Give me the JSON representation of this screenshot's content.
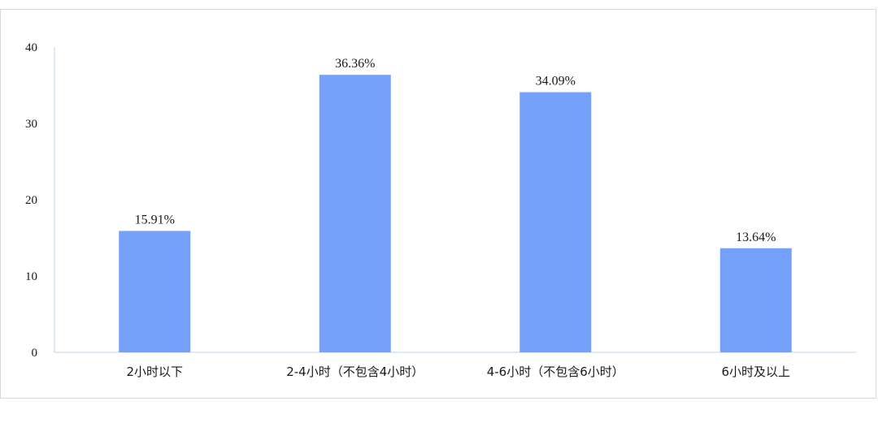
{
  "chart_data": {
    "type": "bar",
    "categories": [
      "2小时以下",
      "2-4小时（不包含4小时）",
      "4-6小时（不包含6小时）",
      "6小时及以上"
    ],
    "values": [
      15.91,
      36.36,
      34.09,
      13.64
    ],
    "data_labels": [
      "15.91%",
      "36.36%",
      "34.09%",
      "13.64%"
    ],
    "ylim": [
      0,
      40
    ],
    "yticks": [
      "0",
      "10",
      "20",
      "30",
      "40"
    ],
    "title": "",
    "xlabel": "",
    "ylabel": "",
    "grid": false,
    "legend": "none",
    "bar_color": "#76a1fa",
    "axis_color": "#bfd3e6"
  }
}
